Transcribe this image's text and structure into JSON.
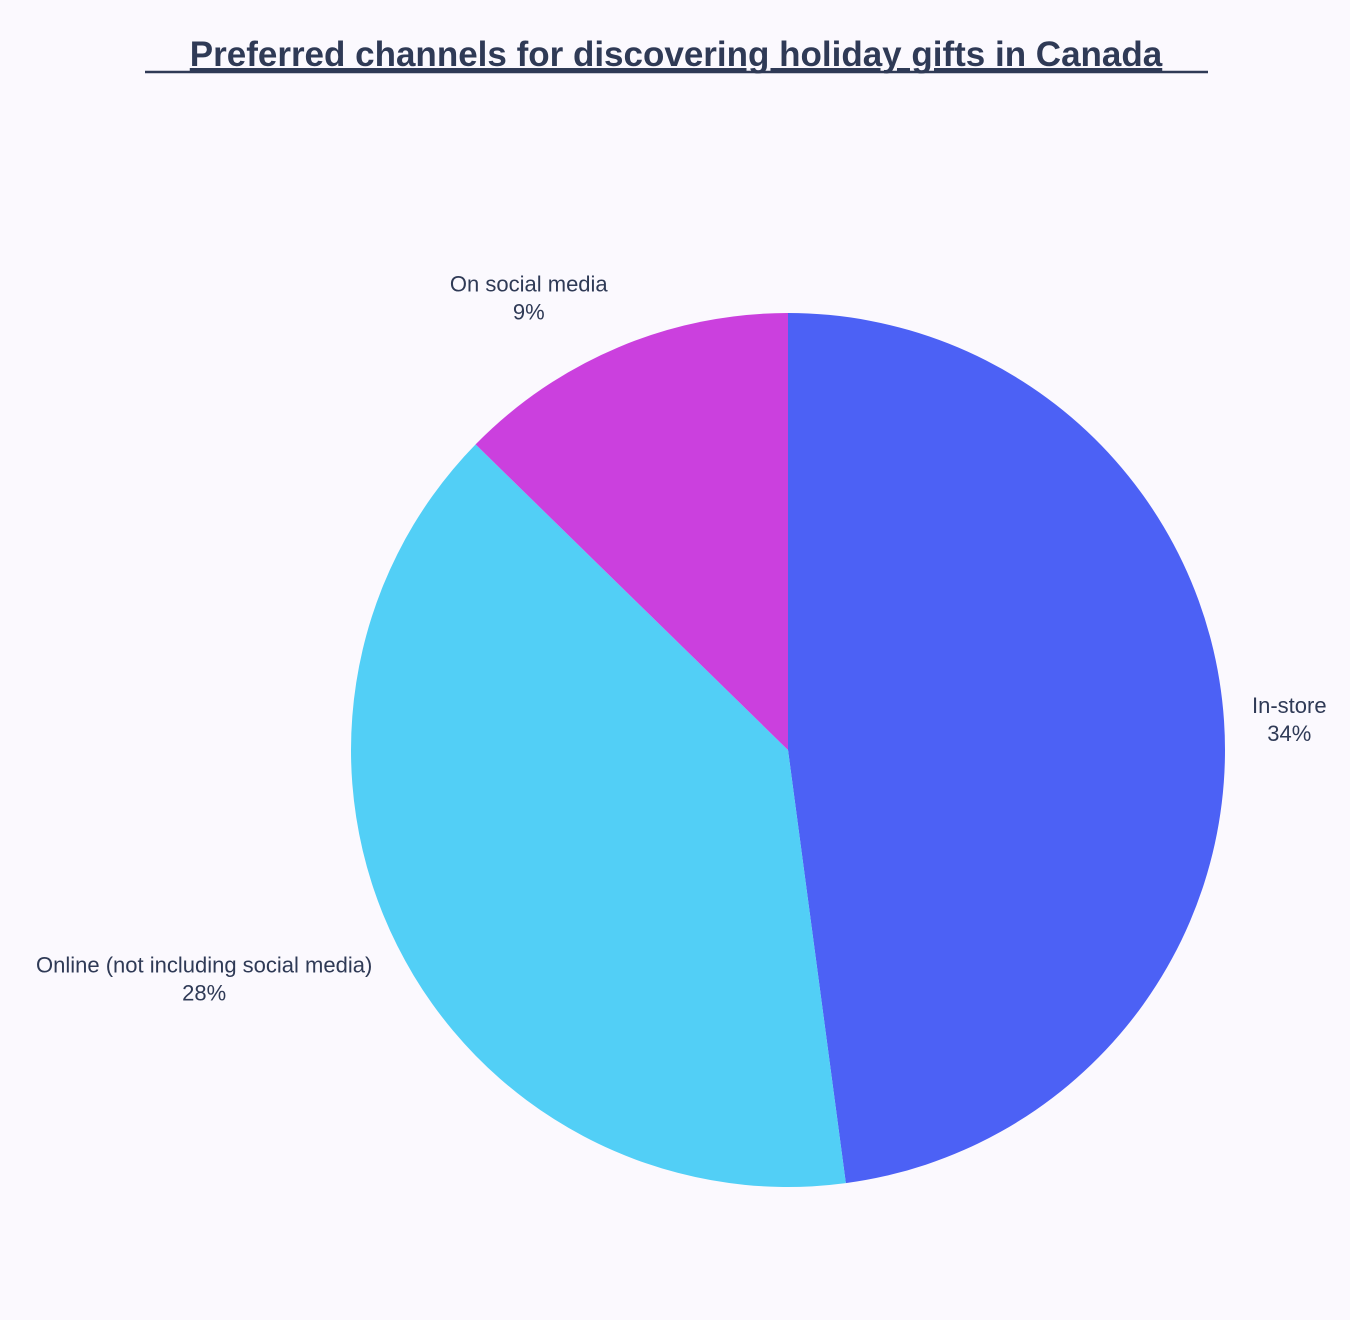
{
  "chart_data": {
    "type": "pie",
    "title": "Preferred channels for discovering holiday gifts in Canada",
    "start_angle_deg": 0,
    "direction": "clockwise",
    "slices": [
      {
        "label": "In-store",
        "value": 34,
        "value_label": "34%",
        "color": "#4c61f5"
      },
      {
        "label": "Online (not including social media)",
        "value": 28,
        "value_label": "28%",
        "color": "#52cff6"
      },
      {
        "label": "On social media",
        "value": 9,
        "value_label": "9%",
        "color": "#cb40de"
      }
    ]
  }
}
